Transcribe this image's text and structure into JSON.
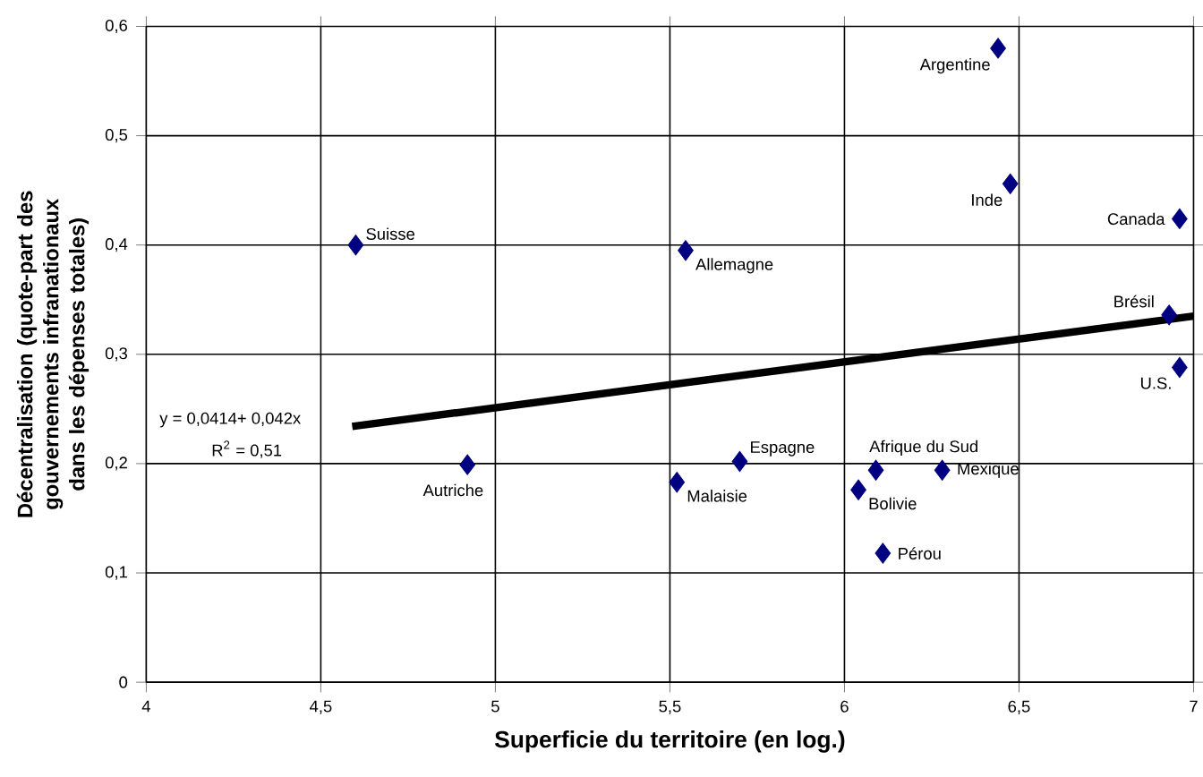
{
  "chart_data": {
    "type": "scatter",
    "xlabel": "Superficie du territoire (en log.)",
    "ylabel": "Décentralisation (quote-part des gouvernements infranationaux dans les dépenses totales)",
    "xlim": [
      4,
      7
    ],
    "ylim": [
      0,
      0.6
    ],
    "xticks": [
      4,
      {
        "value": 4.5,
        "label": "4,5"
      },
      5,
      {
        "value": 5.5,
        "label": "5,5"
      },
      6,
      {
        "value": 6.5,
        "label": "6,5"
      },
      7
    ],
    "yticks": [
      0,
      {
        "value": 0.1,
        "label": "0,1"
      },
      {
        "value": 0.2,
        "label": "0,2"
      },
      {
        "value": 0.3,
        "label": "0,3"
      },
      {
        "value": 0.4,
        "label": "0,4"
      },
      {
        "value": 0.5,
        "label": "0,5"
      },
      {
        "value": 0.6,
        "label": "0,6"
      }
    ],
    "grid": true,
    "marker": "diamond",
    "series": [
      {
        "type": "scatter",
        "color": "#000080",
        "x": [
          4.6,
          5.545,
          6.44,
          6.475,
          6.96,
          6.93,
          6.96,
          4.92,
          5.52,
          5.7,
          6.09,
          6.04,
          6.28,
          6.11
        ],
        "values": [
          0.4,
          0.395,
          0.58,
          0.456,
          0.424,
          0.336,
          0.288,
          0.199,
          0.183,
          0.202,
          0.194,
          0.176,
          0.194,
          0.118
        ]
      },
      {
        "type": "line",
        "color": "#000000",
        "line_style": "solid",
        "marker": "none",
        "x": [
          4.59,
          7
        ],
        "values": [
          0.234,
          0.335
        ]
      }
    ],
    "annotations": [
      "y =  0,0414+ 0,042x",
      "R$^{2}$ = 0,51",
      {
        "text": "Suisse",
        "x": 4.6,
        "y": 0.4
      },
      {
        "text": "Allemagne",
        "x": 5.545,
        "y": 0.395
      },
      {
        "text": "Argentine",
        "x": 6.44,
        "y": 0.58
      },
      {
        "text": "Inde",
        "x": 6.475,
        "y": 0.456
      },
      {
        "text": "Canada",
        "x": 6.96,
        "y": 0.424
      },
      {
        "text": "Brésil",
        "x": 6.93,
        "y": 0.336
      },
      {
        "text": "U.S.",
        "x": 6.96,
        "y": 0.288
      },
      {
        "text": "Autriche",
        "x": 4.92,
        "y": 0.199
      },
      {
        "text": "Malaisie",
        "x": 5.52,
        "y": 0.183
      },
      {
        "text": "Espagne",
        "x": 5.7,
        "y": 0.202
      },
      {
        "text": "Afrique du Sud",
        "x": 6.09,
        "y": 0.194
      },
      {
        "text": "Bolivie",
        "x": 6.04,
        "y": 0.176
      },
      {
        "text": "Mexique",
        "x": 6.28,
        "y": 0.194
      },
      {
        "text": "Pérou",
        "x": 6.11,
        "y": 0.118
      }
    ]
  }
}
